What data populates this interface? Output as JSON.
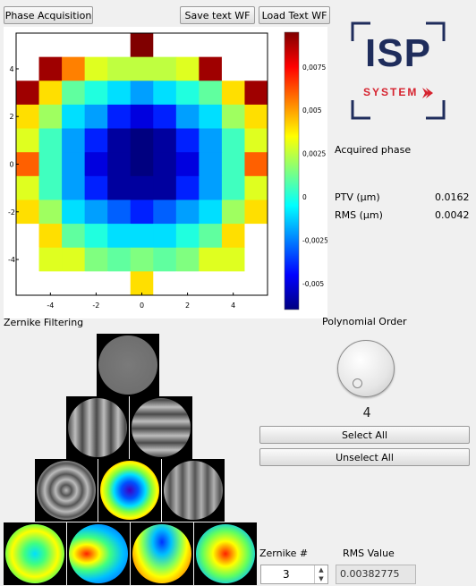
{
  "toolbar": {
    "phase_acquisition": "Phase Acquisition",
    "save_text_wf": "Save text WF",
    "load_text_wf": "Load Text WF"
  },
  "logo": {
    "line1": "ISP",
    "line2": "SYSTEM",
    "color": "#1f2d5c",
    "accent": "#d6232f"
  },
  "phase_plot": {
    "x_ticks": [
      "-4",
      "-2",
      "0",
      "2",
      "4"
    ],
    "y_ticks": [
      "4",
      "2",
      "0",
      "-2",
      "-4"
    ],
    "colorbar_ticks": [
      "0,0075",
      "0,005",
      "0,0025",
      "0",
      "-0,0025",
      "-0,005"
    ]
  },
  "chart_data": {
    "type": "heatmap",
    "title": "",
    "xlabel": "",
    "ylabel": "",
    "xlim": [
      -5.5,
      5.5
    ],
    "ylim": [
      -5.5,
      5.5
    ],
    "colorbar_range": [
      -0.0065,
      0.0095
    ],
    "grid_size": 11,
    "values": [
      [
        null,
        null,
        null,
        null,
        null,
        0.0095,
        null,
        null,
        null,
        null,
        null
      ],
      [
        null,
        0.009,
        0.0055,
        0.003,
        0.0025,
        0.0025,
        0.0025,
        0.003,
        0.009,
        null,
        null
      ],
      [
        0.009,
        0.004,
        0.001,
        0.0,
        -0.001,
        -0.002,
        -0.001,
        0.0,
        0.001,
        0.004,
        0.009
      ],
      [
        0.004,
        0.002,
        -0.001,
        -0.002,
        -0.004,
        -0.005,
        -0.004,
        -0.002,
        -0.001,
        0.002,
        0.004
      ],
      [
        0.003,
        0.0005,
        -0.002,
        -0.004,
        -0.006,
        -0.0065,
        -0.006,
        -0.004,
        -0.002,
        0.0005,
        0.003
      ],
      [
        0.006,
        0.0005,
        -0.002,
        -0.005,
        -0.006,
        -0.0065,
        -0.006,
        -0.005,
        -0.002,
        0.0005,
        0.006
      ],
      [
        0.003,
        0.0005,
        -0.002,
        -0.004,
        -0.006,
        -0.006,
        -0.006,
        -0.004,
        -0.002,
        0.0005,
        0.003
      ],
      [
        0.004,
        0.002,
        -0.001,
        -0.002,
        -0.003,
        -0.004,
        -0.003,
        -0.002,
        -0.001,
        0.002,
        0.004
      ],
      [
        null,
        0.004,
        0.001,
        0.0,
        -0.001,
        -0.001,
        -0.001,
        0.0,
        0.001,
        0.004,
        null
      ],
      [
        null,
        0.003,
        0.003,
        0.0015,
        0.001,
        0.0015,
        0.001,
        0.0015,
        0.003,
        0.003,
        null
      ],
      [
        null,
        null,
        null,
        null,
        null,
        0.004,
        null,
        null,
        null,
        null,
        null
      ]
    ]
  },
  "acquired": {
    "title": "Acquired phase",
    "ptv_label": "PTV (µm)",
    "ptv_value": "0.0162",
    "rms_label": "RMS (µm)",
    "rms_value": "0.0042"
  },
  "zernike": {
    "section_label": "Zernike Filtering",
    "polynomial_order_label": "Polynomial Order",
    "order_value": "4",
    "select_all": "Select All",
    "unselect_all": "Unselect All",
    "zernike_num_label": "Zernike #",
    "zernike_num_value": "3",
    "rms_value_label": "RMS Value",
    "rms_value": "0.00382775",
    "thumbnails": [
      {
        "name": "piston",
        "style": "gray"
      },
      {
        "name": "tilt-x",
        "style": "gray"
      },
      {
        "name": "tilt-y",
        "style": "gray"
      },
      {
        "name": "astig-45",
        "style": "gray"
      },
      {
        "name": "defocus",
        "style": "rainbow"
      },
      {
        "name": "astig-0",
        "style": "gray"
      },
      {
        "name": "trefoil-a",
        "style": "rainbow"
      },
      {
        "name": "coma-x",
        "style": "rainbow"
      },
      {
        "name": "coma-y",
        "style": "rainbow"
      },
      {
        "name": "trefoil-b",
        "style": "rainbow"
      }
    ]
  }
}
